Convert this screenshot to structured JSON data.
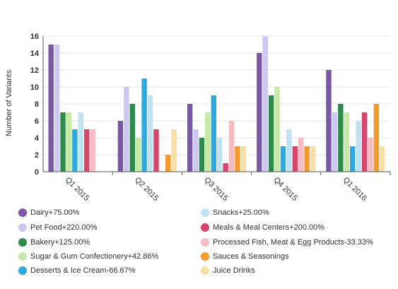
{
  "chart_data": {
    "type": "bar",
    "ylabel": "Number of Variants",
    "xlabel": "",
    "ylim": [
      0,
      16
    ],
    "yticks": [
      0,
      2,
      4,
      6,
      8,
      10,
      12,
      14,
      16
    ],
    "grid": true,
    "legend_position": "bottom",
    "categories": [
      "Q1 2015",
      "Q2 2015",
      "Q3 2015",
      "Q4 2015",
      "Q1 2016"
    ],
    "series": [
      {
        "name": "Dairy",
        "change": "+75.00%",
        "color": "#7b57a8",
        "values": [
          15,
          6,
          8,
          14,
          12
        ]
      },
      {
        "name": "Pet Food",
        "change": "+220.00%",
        "color": "#cdc8f2",
        "values": [
          15,
          10,
          5,
          16,
          7
        ]
      },
      {
        "name": "Bakery",
        "change": "+125.00%",
        "color": "#2f8b4c",
        "values": [
          7,
          8,
          4,
          9,
          8
        ]
      },
      {
        "name": "Sugar & Gum Confectionery",
        "change": "+42.86%",
        "color": "#c6e9a4",
        "values": [
          7,
          4,
          7,
          10,
          7
        ]
      },
      {
        "name": "Desserts & Ice Cream",
        "change": "-66.67%",
        "color": "#2da9df",
        "values": [
          5,
          11,
          9,
          3,
          3
        ]
      },
      {
        "name": "Snacks",
        "change": "+25.00%",
        "color": "#bfe3f3",
        "values": [
          7,
          9,
          4,
          5,
          6
        ]
      },
      {
        "name": "Meals & Meal Centers",
        "change": "+200.00%",
        "color": "#d9456a",
        "values": [
          5,
          5,
          1,
          3,
          7
        ]
      },
      {
        "name": "Processed Fish, Meat & Egg Products",
        "change": "-33.33%",
        "color": "#f6bcc2",
        "values": [
          5,
          0,
          6,
          4,
          4
        ]
      },
      {
        "name": "Sauces & Seasonings",
        "change": "",
        "color": "#f39a2b",
        "values": [
          0,
          2,
          3,
          3,
          8
        ]
      },
      {
        "name": "Juice Drinks",
        "change": "",
        "color": "#f8dfa6",
        "values": [
          0,
          5,
          3,
          3,
          3
        ]
      }
    ]
  }
}
